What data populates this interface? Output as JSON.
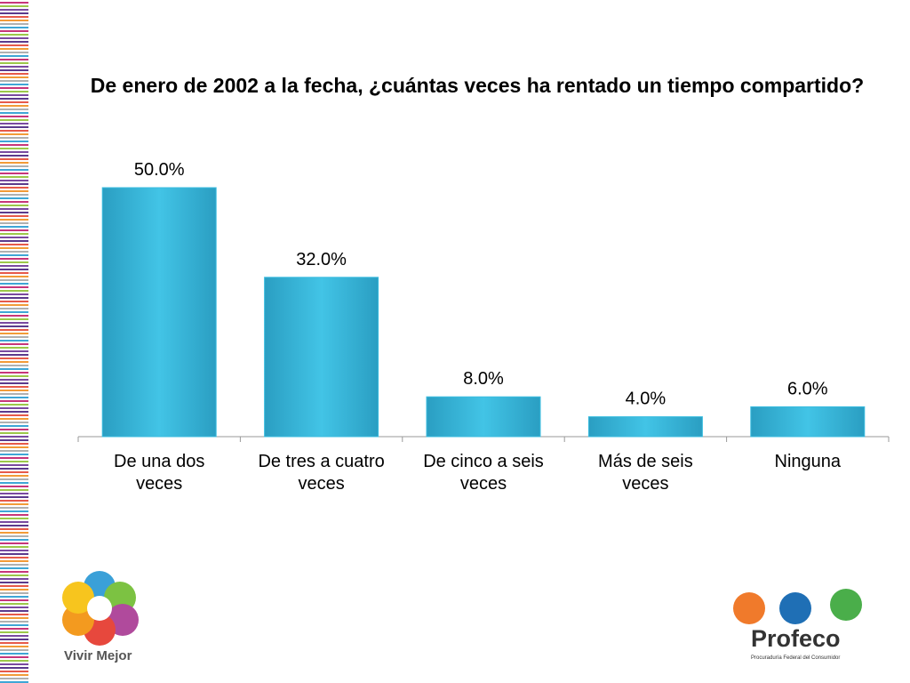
{
  "chart_data": {
    "type": "bar",
    "title": "De enero de 2002 a la fecha, ¿cuántas veces ha rentado un tiempo compartido?",
    "categories": [
      "De una dos veces",
      "De tres a cuatro veces",
      "De cinco a seis veces",
      "Más de seis veces",
      "Ninguna"
    ],
    "values": [
      50.0,
      32.0,
      8.0,
      4.0,
      6.0
    ],
    "value_labels": [
      "50.0%",
      "32.0%",
      "8.0%",
      "4.0%",
      "6.0%"
    ],
    "color": "#3bbde0",
    "ylim": [
      0,
      60
    ]
  },
  "logos": {
    "left": "Vivir Mejor",
    "right": "Profeco",
    "right_subtitle": "Procuraduría Federal del Consumidor"
  }
}
